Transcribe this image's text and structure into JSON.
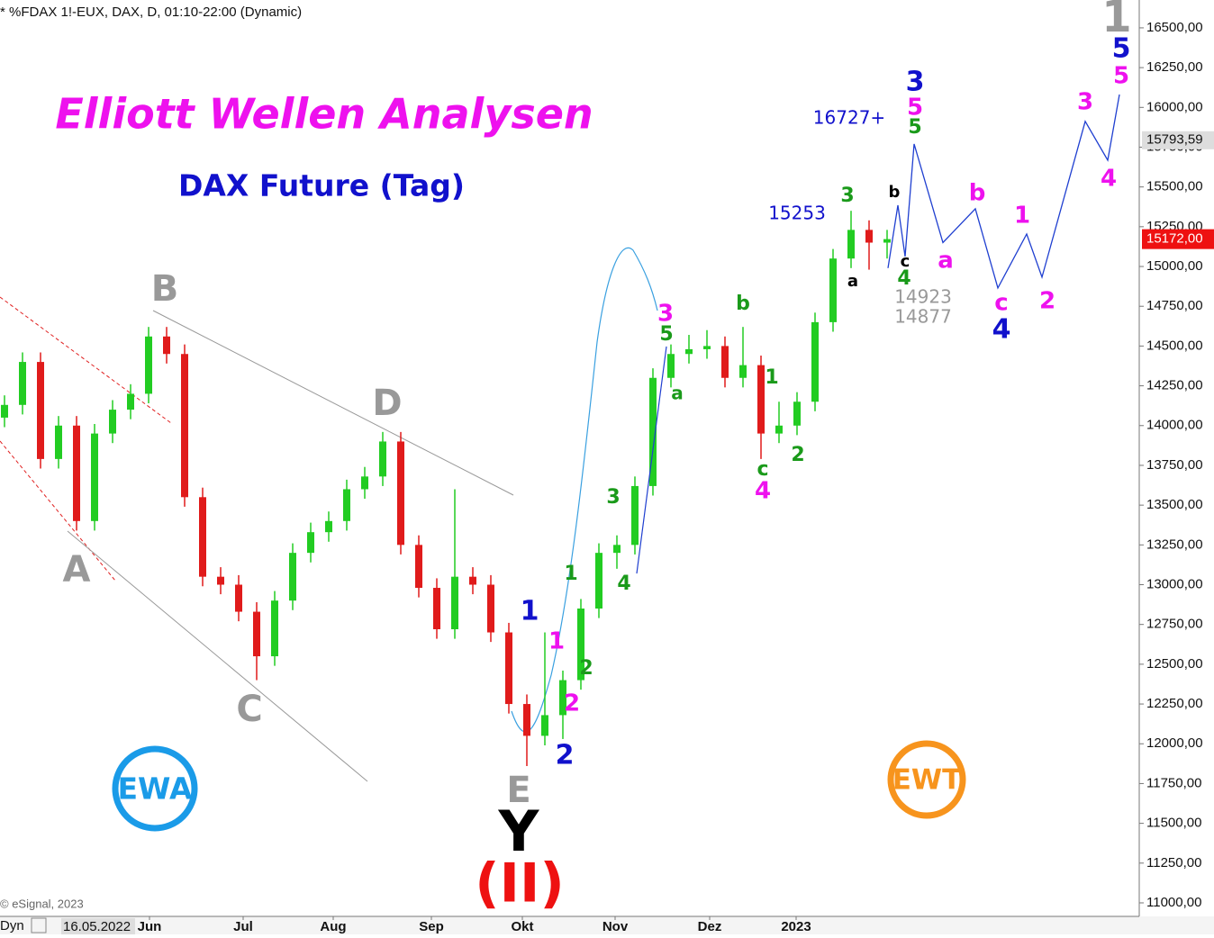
{
  "chart_data": {
    "type": "candlestick",
    "header": "* %FDAX 1!-EUX, DAX, D, 01:10-22:00 (Dynamic)",
    "title": "Elliott Wellen Analysen",
    "subtitle": "DAX Future (Tag)",
    "copyright": "© eSignal, 2023",
    "footer_left": "Dyn",
    "cursor_date": "16.05.2022",
    "logos": [
      "EWA",
      "EWT"
    ],
    "up_color": "#22cc22",
    "down_color": "#e01b1b",
    "candles": [
      [
        14050,
        14190,
        13990,
        14130
      ],
      [
        14130,
        14460,
        14070,
        14400
      ],
      [
        14400,
        14460,
        13730,
        13790
      ],
      [
        13790,
        14060,
        13730,
        14000
      ],
      [
        14000,
        14060,
        13340,
        13400
      ],
      [
        13400,
        14010,
        13340,
        13950
      ],
      [
        13950,
        14160,
        13890,
        14100
      ],
      [
        14100,
        14260,
        14040,
        14200
      ],
      [
        14200,
        14620,
        14140,
        14560
      ],
      [
        14560,
        14620,
        14390,
        14450
      ],
      [
        14450,
        14510,
        13490,
        13550
      ],
      [
        13550,
        13610,
        12990,
        13050
      ],
      [
        13050,
        13110,
        12940,
        13000
      ],
      [
        13000,
        13060,
        12770,
        12830
      ],
      [
        12830,
        12890,
        12400,
        12550
      ],
      [
        12550,
        12960,
        12490,
        12900
      ],
      [
        12900,
        13260,
        12840,
        13200
      ],
      [
        13200,
        13390,
        13140,
        13330
      ],
      [
        13330,
        13460,
        13270,
        13400
      ],
      [
        13400,
        13660,
        13340,
        13600
      ],
      [
        13600,
        13740,
        13540,
        13680
      ],
      [
        13680,
        13960,
        13620,
        13900
      ],
      [
        13900,
        13960,
        13190,
        13250
      ],
      [
        13250,
        13310,
        12920,
        12980
      ],
      [
        12980,
        13040,
        12660,
        12720
      ],
      [
        12720,
        13600,
        12660,
        13050
      ],
      [
        13050,
        13110,
        12940,
        13000
      ],
      [
        13000,
        13060,
        12640,
        12700
      ],
      [
        12700,
        12760,
        12190,
        12250
      ],
      [
        12250,
        12310,
        11860,
        12050
      ],
      [
        12050,
        12700,
        11990,
        12180
      ],
      [
        12180,
        12460,
        12030,
        12400
      ],
      [
        12400,
        12910,
        12340,
        12850
      ],
      [
        12850,
        13260,
        12790,
        13200
      ],
      [
        13200,
        13310,
        13100,
        13250
      ],
      [
        13250,
        13680,
        13190,
        13620
      ],
      [
        13620,
        14360,
        13560,
        14300
      ],
      [
        14300,
        14510,
        14240,
        14450
      ],
      [
        14450,
        14570,
        14390,
        14480
      ],
      [
        14480,
        14600,
        14420,
        14500
      ],
      [
        14500,
        14560,
        14240,
        14300
      ],
      [
        14300,
        14620,
        14240,
        14380
      ],
      [
        14380,
        14440,
        13790,
        13950
      ],
      [
        13950,
        14150,
        13890,
        14000
      ],
      [
        14000,
        14210,
        13940,
        14150
      ],
      [
        14150,
        14710,
        14090,
        14650
      ],
      [
        14650,
        15110,
        14590,
        15050
      ],
      [
        15050,
        15350,
        14990,
        15230
      ],
      [
        15230,
        15290,
        14980,
        15150
      ],
      [
        15150,
        15230,
        15050,
        15172
      ]
    ],
    "projection": {
      "color": "#1f3fd0",
      "x": [
        49.05,
        49.6,
        50,
        50.5,
        52.1,
        53.9,
        55.15,
        56.75,
        57.6,
        60,
        61.25,
        61.9
      ],
      "values": [
        14990,
        15385,
        15063,
        15770,
        15150,
        15363,
        14865,
        15204,
        14933,
        15912,
        15668,
        16081
      ]
    },
    "channel_line": {
      "color": "#1f3fd0",
      "x": [
        35.1,
        36.75
      ],
      "values": [
        13070,
        14497
      ]
    },
    "last_price": {
      "value": 15172,
      "label": "15172,00",
      "color": "#ee1111"
    },
    "marker_price": {
      "value": 15793.59,
      "label": "15793,59"
    },
    "xlim": [
      -0.25,
      63
    ],
    "xticks": [
      {
        "value": 8.05,
        "label": "Jun"
      },
      {
        "value": 13.25,
        "label": "Jul"
      },
      {
        "value": 18.25,
        "label": "Aug"
      },
      {
        "value": 23.7,
        "label": "Sep"
      },
      {
        "value": 28.75,
        "label": "Okt"
      },
      {
        "value": 33.9,
        "label": "Nov"
      },
      {
        "value": 39.15,
        "label": "Dez"
      },
      {
        "value": 43.95,
        "label": "2023"
      }
    ],
    "ylim": [
      10915,
      16675
    ],
    "yticks": [
      {
        "value": 11000,
        "label": "11000,00"
      },
      {
        "value": 11250,
        "label": "11250,00"
      },
      {
        "value": 11500,
        "label": "11500,00"
      },
      {
        "value": 11750,
        "label": "11750,00"
      },
      {
        "value": 12000,
        "label": "12000,00"
      },
      {
        "value": 12250,
        "label": "12250,00"
      },
      {
        "value": 12500,
        "label": "12500,00"
      },
      {
        "value": 12750,
        "label": "12750,00"
      },
      {
        "value": 13000,
        "label": "13000,00"
      },
      {
        "value": 13250,
        "label": "13250,00"
      },
      {
        "value": 13500,
        "label": "13500,00"
      },
      {
        "value": 13750,
        "label": "13750,00"
      },
      {
        "value": 14000,
        "label": "14000,00"
      },
      {
        "value": 14250,
        "label": "14250,00"
      },
      {
        "value": 14500,
        "label": "14500,00"
      },
      {
        "value": 14750,
        "label": "14750,00"
      },
      {
        "value": 15000,
        "label": "15000,00"
      },
      {
        "value": 15250,
        "label": "15250,00"
      },
      {
        "value": 15500,
        "label": "15500,00"
      },
      {
        "value": 15750,
        "label": "15750,00"
      },
      {
        "value": 16000,
        "label": "16000,00"
      },
      {
        "value": 16250,
        "label": "16250,00"
      },
      {
        "value": 16500,
        "label": "16500,00"
      }
    ],
    "wave_labels": [
      "B",
      "A",
      "C",
      "D",
      "E",
      "Y",
      "(II)",
      "1",
      "1",
      "2",
      "2",
      "1",
      "2",
      "3",
      "4",
      "3",
      "5",
      "a",
      "b",
      "1",
      "c",
      "4",
      "2",
      "3",
      "15253",
      "a",
      "b",
      "c",
      "4",
      "14923",
      "14877",
      "16727+",
      "3",
      "5",
      "5",
      "a",
      "b",
      "c",
      "4",
      "1",
      "2",
      "3",
      "4",
      "5",
      "5",
      "1"
    ]
  }
}
